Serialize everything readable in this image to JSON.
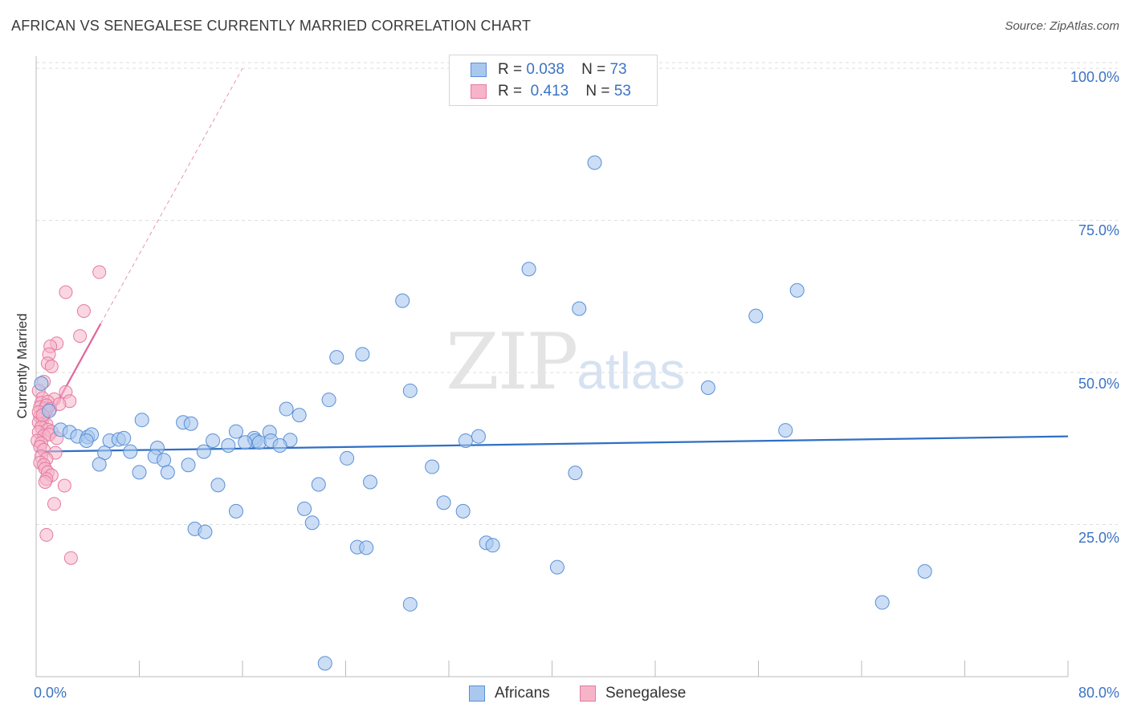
{
  "title": "AFRICAN VS SENEGALESE CURRENTLY MARRIED CORRELATION CHART",
  "source": "Source: ZipAtlas.com",
  "watermark": {
    "zip": "ZIP",
    "atlas": "atlas"
  },
  "legend": {
    "africans": {
      "r_label": "R =",
      "r_value": "0.038",
      "n_label": "N =",
      "n_value": "73"
    },
    "senegalese": {
      "r_label": "R =",
      "r_value": "0.413",
      "n_label": "N =",
      "n_value": "53"
    }
  },
  "colors": {
    "africans_fill": "#a9c8ee",
    "africans_stroke": "#5b8fd6",
    "africans_line": "#2f6fc4",
    "senegalese_fill": "#f6b4c9",
    "senegalese_stroke": "#e57aa0",
    "senegalese_line": "#e0669a",
    "tick_text": "#3b73c4",
    "grid": "#dddddd"
  },
  "chart_data": {
    "type": "scatter",
    "title": "AFRICAN VS SENEGALESE CURRENTLY MARRIED CORRELATION CHART",
    "xlabel": "",
    "ylabel": "Currently Married",
    "xlim": [
      0,
      80
    ],
    "ylim": [
      0,
      102
    ],
    "x_tick_labels": [
      "0.0%",
      "80.0%"
    ],
    "y_ticks": [
      25,
      50,
      75,
      100
    ],
    "y_tick_labels": [
      "25.0%",
      "50.0%",
      "75.0%",
      "100.0%"
    ],
    "series": [
      {
        "name": "Africans",
        "trend": {
          "x": [
            0,
            80
          ],
          "y": [
            37.0,
            39.5
          ]
        },
        "points": [
          [
            43.3,
            84.5
          ],
          [
            38.2,
            67.0
          ],
          [
            59.0,
            63.5
          ],
          [
            42.1,
            60.5
          ],
          [
            28.4,
            61.8
          ],
          [
            55.8,
            59.3
          ],
          [
            52.1,
            47.5
          ],
          [
            29.0,
            47.0
          ],
          [
            23.3,
            52.5
          ],
          [
            25.3,
            53.0
          ],
          [
            22.7,
            45.5
          ],
          [
            19.4,
            44.0
          ],
          [
            20.4,
            43.0
          ],
          [
            58.1,
            40.5
          ],
          [
            34.3,
            39.5
          ],
          [
            33.3,
            38.8
          ],
          [
            8.2,
            42.2
          ],
          [
            11.4,
            41.8
          ],
          [
            12.0,
            41.6
          ],
          [
            15.5,
            40.3
          ],
          [
            18.1,
            40.2
          ],
          [
            16.9,
            39.2
          ],
          [
            17.0,
            38.8
          ],
          [
            17.3,
            38.5
          ],
          [
            16.2,
            38.5
          ],
          [
            18.2,
            38.8
          ],
          [
            19.7,
            38.9
          ],
          [
            18.9,
            38.0
          ],
          [
            13.7,
            38.8
          ],
          [
            14.9,
            38.0
          ],
          [
            1.0,
            43.7
          ],
          [
            1.9,
            40.6
          ],
          [
            2.6,
            40.2
          ],
          [
            3.2,
            39.5
          ],
          [
            4.0,
            39.4
          ],
          [
            4.3,
            39.8
          ],
          [
            3.9,
            38.8
          ],
          [
            5.7,
            38.8
          ],
          [
            6.4,
            39.0
          ],
          [
            6.8,
            39.2
          ],
          [
            9.4,
            37.6
          ],
          [
            7.3,
            37.0
          ],
          [
            5.3,
            36.8
          ],
          [
            13.0,
            37.0
          ],
          [
            9.2,
            36.2
          ],
          [
            9.9,
            35.6
          ],
          [
            11.8,
            34.8
          ],
          [
            4.9,
            34.9
          ],
          [
            10.2,
            33.6
          ],
          [
            8.0,
            33.6
          ],
          [
            24.1,
            35.9
          ],
          [
            30.7,
            34.5
          ],
          [
            41.8,
            33.5
          ],
          [
            14.1,
            31.5
          ],
          [
            21.9,
            31.6
          ],
          [
            25.9,
            32.0
          ],
          [
            31.6,
            28.6
          ],
          [
            15.5,
            27.2
          ],
          [
            20.8,
            27.6
          ],
          [
            33.1,
            27.2
          ],
          [
            21.4,
            25.3
          ],
          [
            12.3,
            24.3
          ],
          [
            13.1,
            23.8
          ],
          [
            24.9,
            21.3
          ],
          [
            25.6,
            21.2
          ],
          [
            34.9,
            22.0
          ],
          [
            35.4,
            21.6
          ],
          [
            40.4,
            18.0
          ],
          [
            68.9,
            17.3
          ],
          [
            29.0,
            11.9
          ],
          [
            65.6,
            12.2
          ],
          [
            22.4,
            2.2
          ],
          [
            0.4,
            48.2
          ]
        ]
      },
      {
        "name": "Senegalese",
        "trend": {
          "x": [
            0.2,
            5.0
          ],
          "y": [
            39.5,
            58.0
          ]
        },
        "trend_dashed": {
          "x": [
            5.0,
            16.0
          ],
          "y": [
            58.0,
            100.0
          ]
        },
        "points": [
          [
            4.9,
            66.5
          ],
          [
            2.3,
            63.2
          ],
          [
            3.7,
            60.1
          ],
          [
            3.4,
            56.0
          ],
          [
            1.6,
            54.8
          ],
          [
            1.1,
            54.3
          ],
          [
            1.0,
            53.0
          ],
          [
            0.9,
            51.5
          ],
          [
            1.2,
            51.0
          ],
          [
            0.6,
            48.5
          ],
          [
            0.2,
            47.0
          ],
          [
            2.3,
            46.8
          ],
          [
            1.4,
            45.6
          ],
          [
            0.5,
            45.8
          ],
          [
            0.4,
            45.0
          ],
          [
            0.9,
            45.2
          ],
          [
            2.6,
            45.3
          ],
          [
            0.3,
            44.3
          ],
          [
            0.7,
            44.1
          ],
          [
            0.8,
            44.6
          ],
          [
            1.1,
            44.0
          ],
          [
            0.3,
            42.8
          ],
          [
            0.5,
            42.3
          ],
          [
            0.2,
            41.8
          ],
          [
            0.8,
            41.5
          ],
          [
            0.4,
            41.0
          ],
          [
            0.9,
            40.6
          ],
          [
            0.2,
            40.2
          ],
          [
            1.2,
            40.3
          ],
          [
            0.6,
            39.6
          ],
          [
            1.0,
            39.8
          ],
          [
            1.6,
            39.2
          ],
          [
            0.1,
            38.8
          ],
          [
            0.4,
            38.4
          ],
          [
            0.3,
            37.8
          ],
          [
            0.6,
            37.3
          ],
          [
            1.5,
            36.8
          ],
          [
            0.4,
            36.2
          ],
          [
            0.8,
            35.8
          ],
          [
            0.3,
            35.2
          ],
          [
            0.6,
            34.8
          ],
          [
            0.7,
            34.2
          ],
          [
            0.9,
            33.6
          ],
          [
            1.2,
            33.1
          ],
          [
            0.8,
            32.5
          ],
          [
            0.7,
            32.0
          ],
          [
            2.2,
            31.4
          ],
          [
            1.4,
            28.4
          ],
          [
            0.8,
            23.3
          ],
          [
            2.7,
            19.5
          ],
          [
            0.2,
            43.5
          ],
          [
            0.5,
            43.0
          ],
          [
            1.8,
            44.8
          ]
        ]
      }
    ]
  },
  "bottom_legend": {
    "africans": "Africans",
    "senegalese": "Senegalese"
  }
}
